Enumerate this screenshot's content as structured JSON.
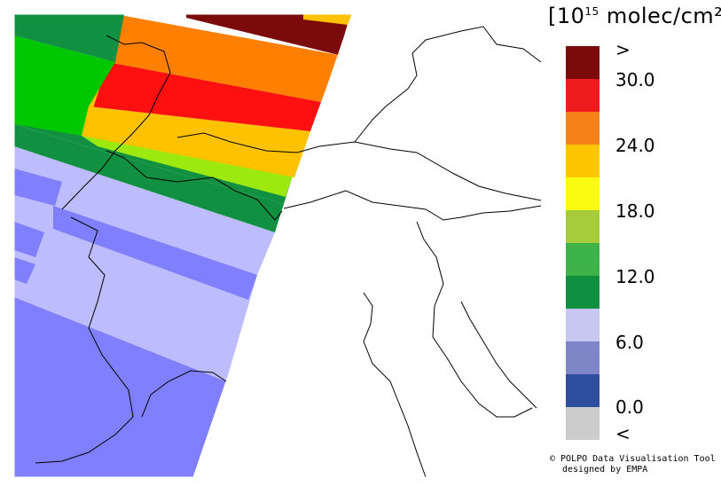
{
  "legend": {
    "unit_prefix": "[10",
    "unit_exp": "15",
    "unit_suffix": " molec/cm²]",
    "swatches": [
      {
        "color": "#7b0a0a"
      },
      {
        "color": "#ee1c1c"
      },
      {
        "color": "#f6801a"
      },
      {
        "color": "#fec600"
      },
      {
        "color": "#fafb11"
      },
      {
        "color": "#a6cc3a"
      },
      {
        "color": "#3db34a"
      },
      {
        "color": "#0f9040"
      },
      {
        "color": "#c6c8f2"
      },
      {
        "color": "#7f86c8"
      },
      {
        "color": "#2f4f9e"
      },
      {
        "color": "#cccccc"
      }
    ],
    "ticks": [
      ">",
      "30.0",
      "24.0",
      "18.0",
      "12.0",
      "6.0",
      "0.0",
      "<"
    ]
  },
  "credit": {
    "line1": "© POLPO Data Visualisation Tool",
    "line2": "designed by EMPA"
  },
  "colors": {
    "dark_red": "#7b0a0a",
    "red": "#ff1010",
    "orange": "#ff8000",
    "yellow_orange": "#ffc200",
    "lime": "#8fff00",
    "light_green": "#9ce90f",
    "green": "#00c800",
    "dark_green": "#109040",
    "lavender": "#bcbcff",
    "periwinkle": "#8080ff",
    "outline": "#000000"
  }
}
